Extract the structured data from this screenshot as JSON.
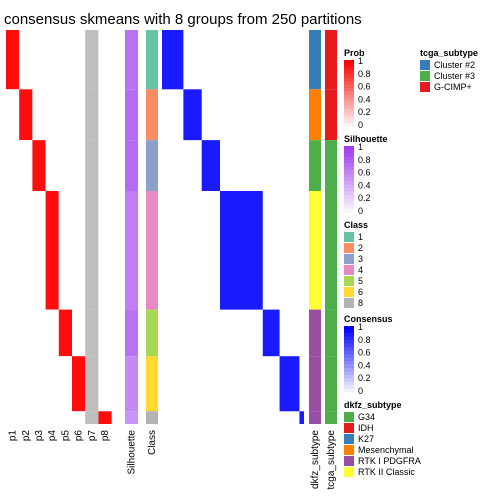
{
  "chart_data": {
    "type": "heatmap",
    "title": "consensus skmeans with 8 groups from 250 partitions",
    "groups": [
      {
        "class": "1",
        "size": 14,
        "class_color": "#66C2A5",
        "prob_col": 0,
        "silhouette": 0.72,
        "dkfz": "K27",
        "tcga": "G-CIMP+"
      },
      {
        "class": "2",
        "size": 12,
        "class_color": "#FC8D62",
        "prob_col": 1,
        "silhouette": 0.75,
        "dkfz": "Mesenchymal",
        "tcga": "G-CIMP+"
      },
      {
        "class": "3",
        "size": 12,
        "class_color": "#8DA0CB",
        "prob_col": 2,
        "silhouette": 0.75,
        "dkfz": "G34",
        "tcga": "Cluster #3"
      },
      {
        "class": "4",
        "size": 28,
        "class_color": "#E78AC3",
        "prob_col": 3,
        "silhouette": 0.66,
        "dkfz": "RTK II Classic",
        "tcga": "Cluster #3"
      },
      {
        "class": "5",
        "size": 11,
        "class_color": "#A6D854",
        "prob_col": 4,
        "silhouette": 0.72,
        "dkfz": "RTK I PDGFRA",
        "tcga": "Cluster #3"
      },
      {
        "class": "6",
        "size": 13,
        "class_color": "#FFD92F",
        "prob_col": 5,
        "silhouette": 0.6,
        "dkfz": "RTK I PDGFRA",
        "tcga": "Cluster #3"
      },
      {
        "class": "8",
        "size": 3,
        "class_color": "#B3B3B3",
        "prob_col": 7,
        "silhouette": 0.55,
        "dkfz": "RTK I PDGFRA",
        "tcga": "Cluster #3"
      }
    ],
    "x_labels": [
      "p1",
      "p2",
      "p3",
      "p4",
      "p5",
      "p6",
      "p7",
      "p8",
      "Silhouette",
      "Class",
      "dkfz_subtype",
      "tcga_subtype"
    ],
    "legends": {
      "prob": {
        "title": "Prob",
        "ticks": [
          "1",
          "0.8",
          "0.6",
          "0.4",
          "0.2",
          "0"
        ],
        "low": "#FFFFFF",
        "high": "#FF0000"
      },
      "silhouette": {
        "title": "Silhouette",
        "ticks": [
          "1",
          "0.8",
          "0.6",
          "0.4",
          "0.2",
          "0"
        ],
        "low": "#FFFFFF",
        "high": "#9F3AF0"
      },
      "class": {
        "title": "Class",
        "items": [
          {
            "label": "1",
            "color": "#66C2A5"
          },
          {
            "label": "2",
            "color": "#FC8D62"
          },
          {
            "label": "3",
            "color": "#8DA0CB"
          },
          {
            "label": "4",
            "color": "#E78AC3"
          },
          {
            "label": "5",
            "color": "#A6D854"
          },
          {
            "label": "6",
            "color": "#FFD92F"
          },
          {
            "label": "8",
            "color": "#B3B3B3"
          }
        ]
      },
      "consensus": {
        "title": "Consensus",
        "ticks": [
          "1",
          "0.8",
          "0.6",
          "0.4",
          "0.2",
          "0"
        ],
        "low": "#FFFFFF",
        "high": "#0000FF"
      },
      "tcga": {
        "title": "tcga_subtype",
        "items": [
          {
            "label": "Cluster #2",
            "color": "#377EB8"
          },
          {
            "label": "Cluster #3",
            "color": "#4DAF4A"
          },
          {
            "label": "G-CIMP+",
            "color": "#E41A1C"
          }
        ]
      },
      "dkfz": {
        "title": "dkfz_subtype",
        "items": [
          {
            "label": "G34",
            "color": "#4DAF4A"
          },
          {
            "label": "IDH",
            "color": "#E41A1C"
          },
          {
            "label": "K27",
            "color": "#377EB8"
          },
          {
            "label": "Mesenchymal",
            "color": "#FF7F00"
          },
          {
            "label": "RTK I PDGFRA",
            "color": "#984EA3"
          },
          {
            "label": "RTK II Classic",
            "color": "#FFFF33"
          }
        ]
      }
    }
  }
}
